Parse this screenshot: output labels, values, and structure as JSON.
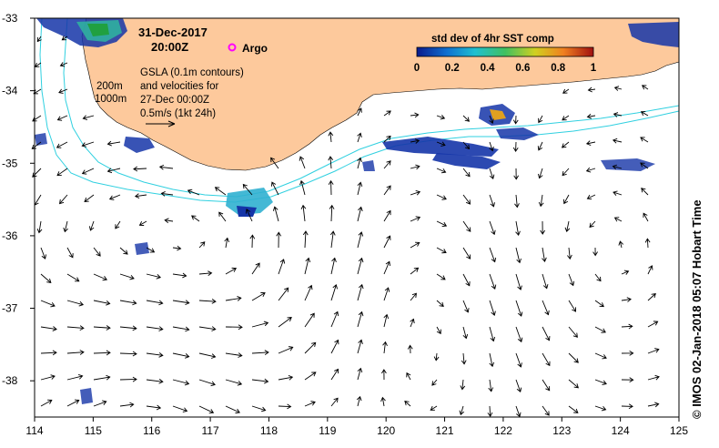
{
  "header": {
    "date": "31-Dec-2017",
    "time": "20:00Z",
    "argo_label": "Argo"
  },
  "annotations": {
    "isobath_200": "200m",
    "isobath_1000": "1000m",
    "gsla_line1": "GSLA (0.1m contours)",
    "gsla_line2": "and velocities for",
    "gsla_line3": "27-Dec 00:00Z",
    "gsla_line4": "0.5m/s (1kt 24h)"
  },
  "colorbar": {
    "title": "std dev of 4hr SST comp",
    "ticks": [
      "0",
      "0.2",
      "0.4",
      "0.6",
      "0.8",
      "1"
    ],
    "colors": [
      "#0a1a8c",
      "#1070d0",
      "#20c0d0",
      "#40c060",
      "#d0d020",
      "#f08020",
      "#a01010"
    ]
  },
  "credit": "© IMOS 02-Jan-2018 05:07 Hobart Time",
  "axes": {
    "x_ticks": [
      "114",
      "115",
      "116",
      "117",
      "118",
      "119",
      "120",
      "121",
      "122",
      "123",
      "124",
      "125"
    ],
    "y_ticks": [
      "-33",
      "-34",
      "-35",
      "-36",
      "-37",
      "-38"
    ],
    "xlim": [
      114,
      125
    ],
    "ylim": [
      -38.5,
      -33
    ]
  },
  "colors": {
    "land": "#fdc99c",
    "isobath": "#30d0e0",
    "argo": "#ff00ff",
    "sst_blue": "#1535a8",
    "sst_cyan": "#30b0d0",
    "sst_green": "#20a040"
  }
}
